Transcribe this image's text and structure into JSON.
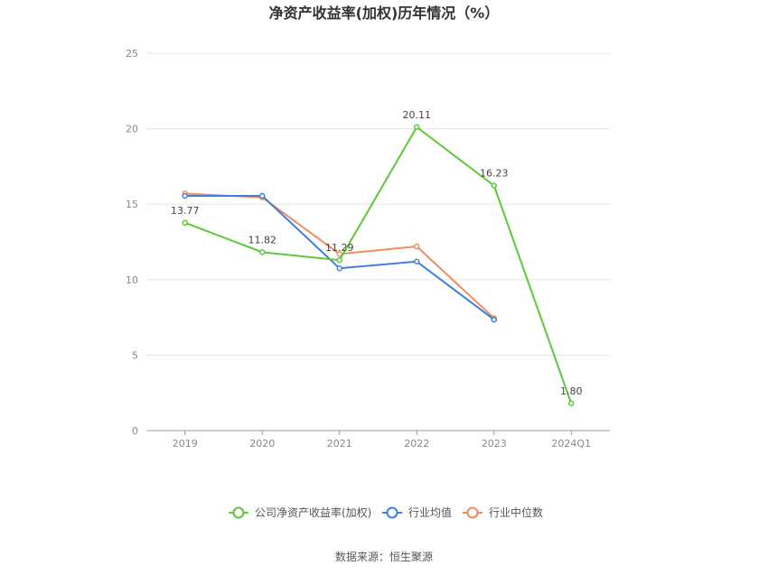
{
  "chart_data": {
    "type": "line",
    "title": "净资产收益率(加权)历年情况（%）",
    "categories": [
      "2019",
      "2020",
      "2021",
      "2022",
      "2023",
      "2024Q1"
    ],
    "ylim": [
      0,
      25
    ],
    "yticks": [
      0,
      5,
      10,
      15,
      20,
      25
    ],
    "grid": true,
    "legend_position": "bottom",
    "series": [
      {
        "name": "公司净资产收益率(加权)",
        "color": "#5cc83a",
        "values": [
          13.77,
          11.82,
          11.29,
          20.11,
          16.23,
          1.8
        ],
        "labels": [
          "13.77",
          "11.82",
          "11.29",
          "20.11",
          "16.23",
          "1.80"
        ]
      },
      {
        "name": "行业均值",
        "color": "#3f7fdb",
        "values": [
          15.55,
          15.55,
          10.75,
          11.2,
          7.35,
          null
        ]
      },
      {
        "name": "行业中位数",
        "color": "#f08c5c",
        "values": [
          15.7,
          15.45,
          11.7,
          12.2,
          7.45,
          null
        ]
      }
    ]
  },
  "source": "数据来源：恒生聚源"
}
